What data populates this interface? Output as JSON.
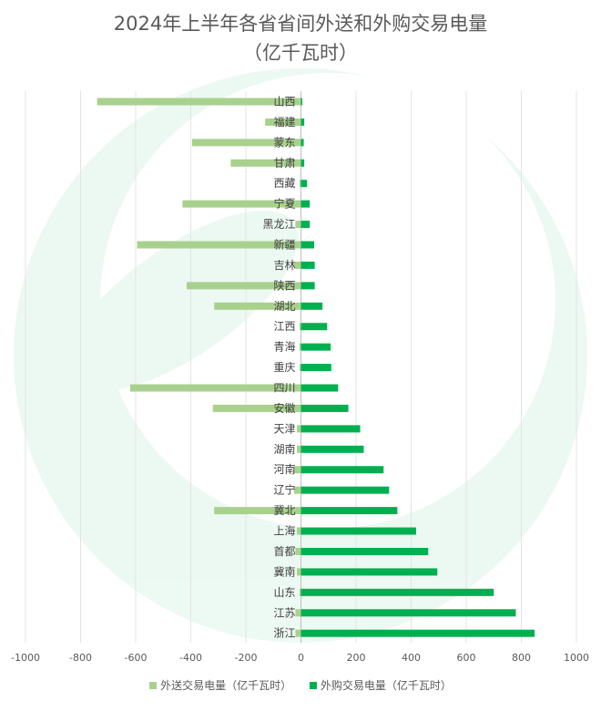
{
  "chart_data": {
    "type": "bar",
    "orientation": "horizontal",
    "title_line1": "2024年上半年各省省间外送和外购交易电量",
    "title_line2": "（亿千瓦时）",
    "categories": [
      "山西",
      "福建",
      "蒙东",
      "甘肃",
      "西藏",
      "宁夏",
      "黑龙江",
      "新疆",
      "吉林",
      "陕西",
      "湖北",
      "江西",
      "青海",
      "重庆",
      "四川",
      "安徽",
      "天津",
      "湖南",
      "河南",
      "辽宁",
      "冀北",
      "上海",
      "首都",
      "冀南",
      "山东",
      "江苏",
      "浙江"
    ],
    "series": [
      {
        "name": "外送交易电量（亿千瓦时）",
        "color": "#a9d18e",
        "values": [
          -740,
          -130,
          -395,
          -255,
          -5,
          -430,
          -20,
          -595,
          -25,
          -415,
          -315,
          -5,
          -5,
          -5,
          -620,
          -320,
          -15,
          -15,
          -25,
          -25,
          -315,
          -15,
          -20,
          -15,
          -5,
          -20,
          -20
        ]
      },
      {
        "name": "外购交易电量（亿千瓦时）",
        "color": "#00b050",
        "values": [
          5,
          12,
          10,
          12,
          22,
          32,
          32,
          48,
          50,
          50,
          78,
          95,
          108,
          110,
          135,
          172,
          215,
          228,
          300,
          320,
          350,
          418,
          462,
          495,
          700,
          780,
          848
        ]
      }
    ],
    "x_ticks": [
      -1000,
      -800,
      -600,
      -400,
      -200,
      0,
      200,
      400,
      600,
      800,
      1000
    ],
    "xlim": [
      -1000,
      1000
    ],
    "grid": true,
    "legend_position": "bottom",
    "watermark": "green-leaf-logo"
  }
}
